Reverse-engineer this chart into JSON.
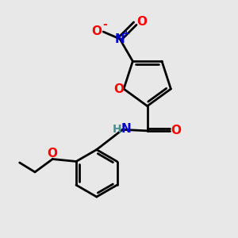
{
  "background_color": "#e8e8e8",
  "bond_color": "#000000",
  "oxygen_color": "#ff0000",
  "nitrogen_color": "#0000cd",
  "nitrogen_amide_color": "#4a8f8f",
  "line_width": 2.0,
  "fig_width": 3.0,
  "fig_height": 3.0,
  "dpi": 100,
  "xlim": [
    0,
    10
  ],
  "ylim": [
    0,
    10
  ]
}
